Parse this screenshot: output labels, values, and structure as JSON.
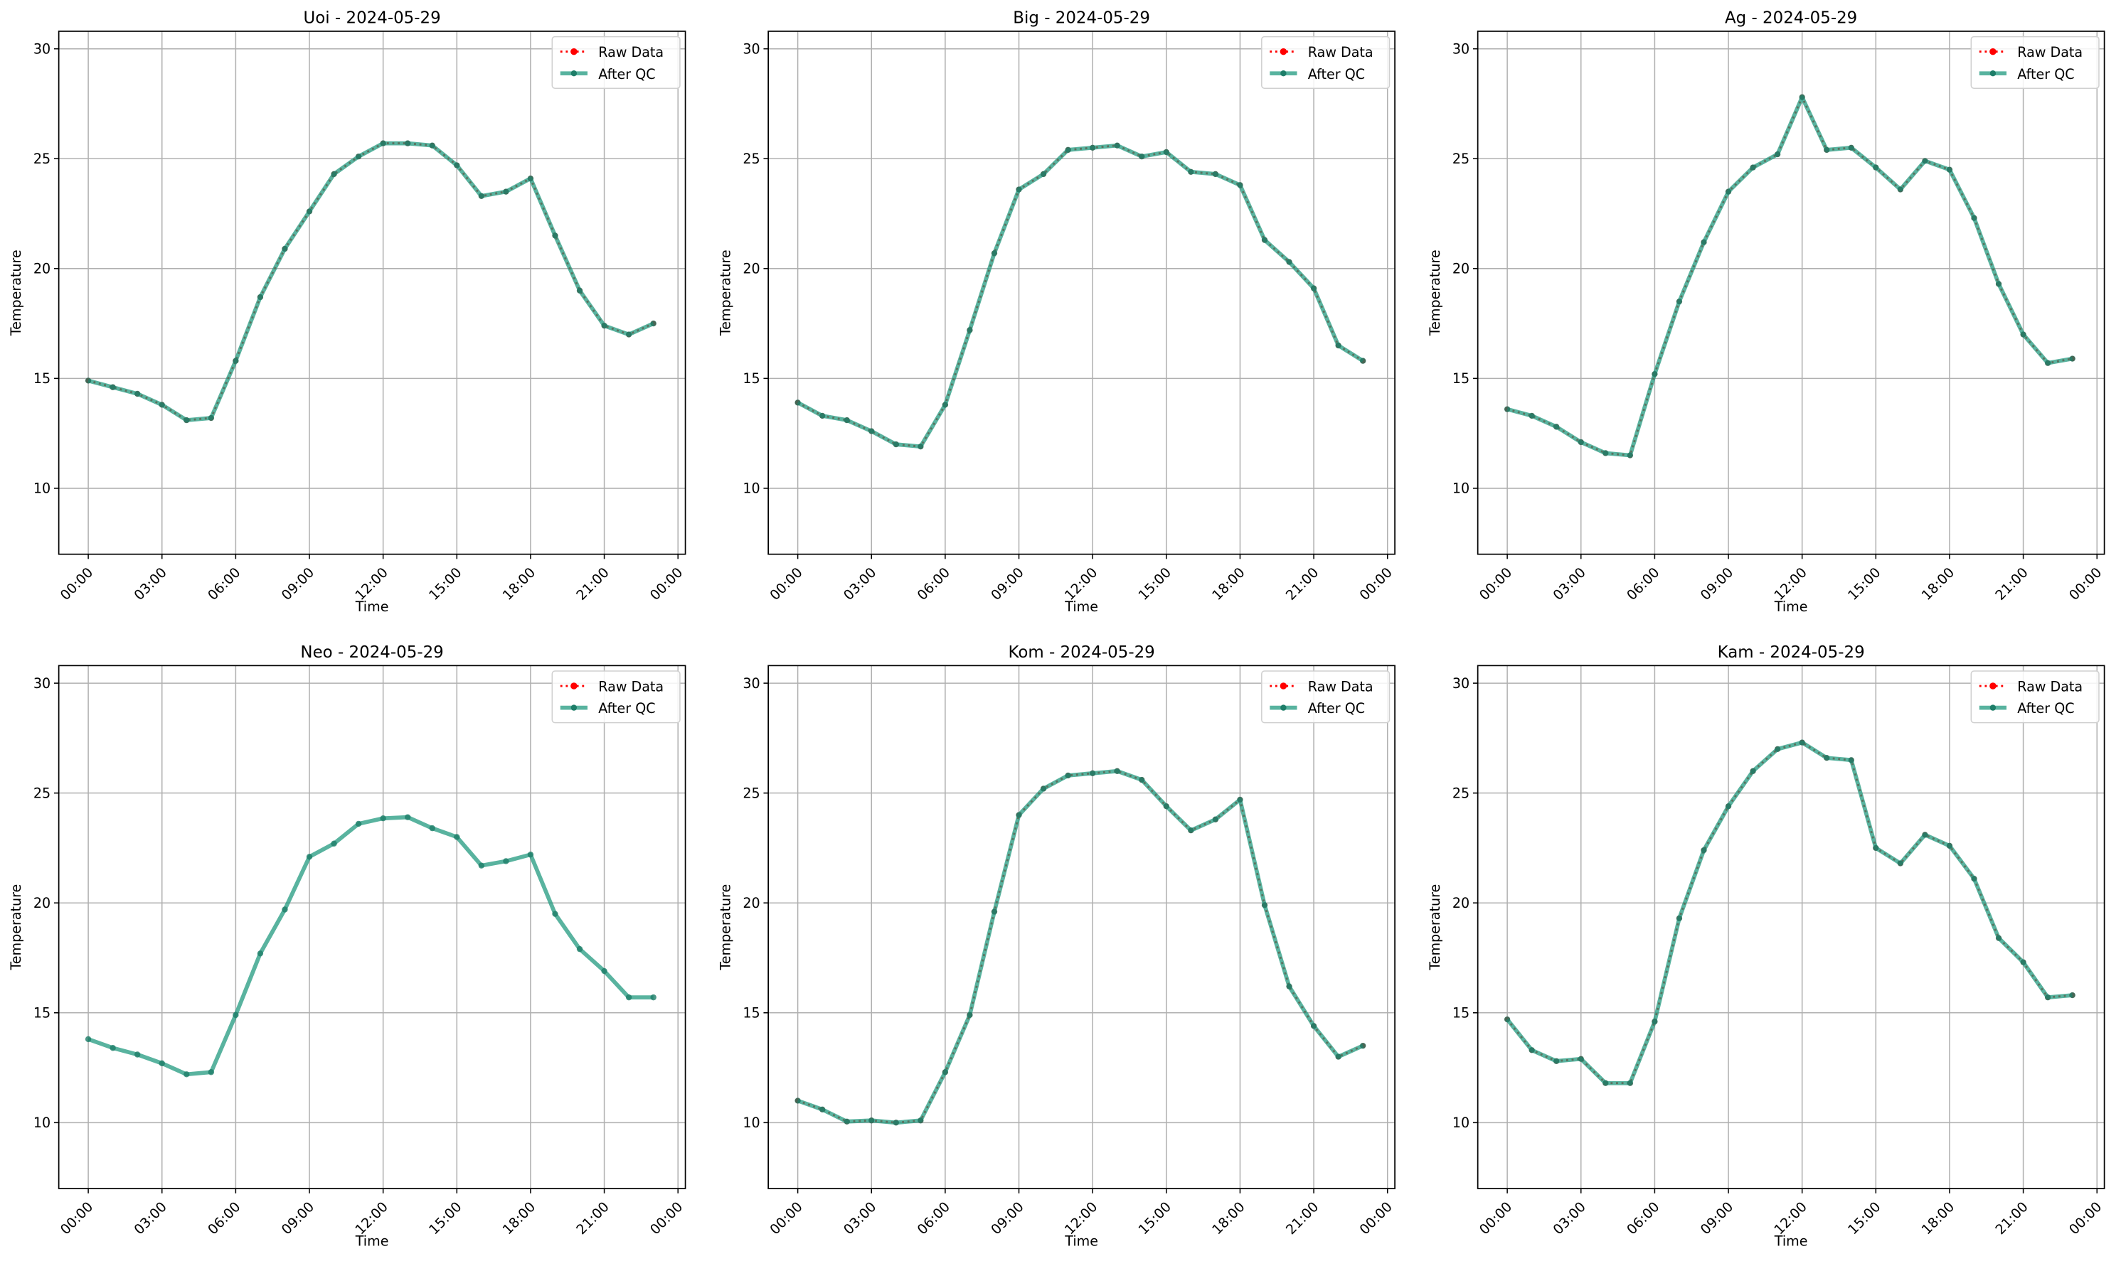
{
  "chart_data": [
    {
      "type": "line",
      "title": "Uoi - 2024-05-29",
      "xlabel": "Time",
      "ylabel": "Temperature",
      "x_hours": [
        0,
        1,
        2,
        3,
        4,
        5,
        6,
        7,
        8,
        9,
        10,
        11,
        12,
        13,
        14,
        15,
        16,
        17,
        18,
        19,
        20,
        21,
        22,
        23
      ],
      "xticks": [
        "00:00",
        "03:00",
        "06:00",
        "09:00",
        "12:00",
        "15:00",
        "18:00",
        "21:00",
        "00:00"
      ],
      "yticks": [
        10,
        15,
        20,
        25,
        30
      ],
      "ylim": [
        7.0,
        30.8
      ],
      "grid": true,
      "legend": "top-right",
      "series": [
        {
          "name": "Raw Data",
          "color": "#ff0000",
          "values": [
            14.9,
            14.6,
            14.3,
            13.8,
            13.1,
            13.2,
            15.8,
            18.7,
            20.9,
            22.6,
            24.3,
            25.1,
            25.7,
            25.7,
            25.6,
            24.7,
            23.3,
            23.5,
            24.1,
            21.5,
            19.0,
            17.4,
            17.0,
            17.5
          ]
        },
        {
          "name": "After QC",
          "color": "#219a7f",
          "values": [
            14.9,
            14.6,
            14.3,
            13.8,
            13.1,
            13.2,
            15.8,
            18.7,
            20.9,
            22.6,
            24.3,
            25.1,
            25.7,
            25.7,
            25.6,
            24.7,
            23.3,
            23.5,
            24.1,
            21.5,
            19.0,
            17.4,
            17.0,
            17.5
          ]
        }
      ]
    },
    {
      "type": "line",
      "title": "Big - 2024-05-29",
      "xlabel": "Time",
      "ylabel": "Temperature",
      "x_hours": [
        0,
        1,
        2,
        3,
        4,
        5,
        6,
        7,
        8,
        9,
        10,
        11,
        12,
        13,
        14,
        15,
        16,
        17,
        18,
        19,
        20,
        21,
        22,
        23
      ],
      "xticks": [
        "00:00",
        "03:00",
        "06:00",
        "09:00",
        "12:00",
        "15:00",
        "18:00",
        "21:00",
        "00:00"
      ],
      "yticks": [
        10,
        15,
        20,
        25,
        30
      ],
      "ylim": [
        7.0,
        30.8
      ],
      "grid": true,
      "legend": "top-right",
      "series": [
        {
          "name": "Raw Data",
          "color": "#ff0000",
          "values": [
            13.9,
            13.3,
            13.1,
            12.6,
            12.0,
            11.9,
            13.8,
            17.2,
            20.7,
            23.6,
            24.3,
            25.4,
            25.5,
            25.6,
            25.1,
            25.3,
            24.4,
            24.3,
            23.8,
            21.3,
            20.3,
            19.1,
            16.5,
            15.8
          ]
        },
        {
          "name": "After QC",
          "color": "#219a7f",
          "values": [
            13.9,
            13.3,
            13.1,
            12.6,
            12.0,
            11.9,
            13.8,
            17.2,
            20.7,
            23.6,
            24.3,
            25.4,
            25.5,
            25.6,
            25.1,
            25.3,
            24.4,
            24.3,
            23.8,
            21.3,
            20.3,
            19.1,
            16.5,
            15.8
          ]
        }
      ]
    },
    {
      "type": "line",
      "title": "Ag - 2024-05-29",
      "xlabel": "Time",
      "ylabel": "Temperature",
      "x_hours": [
        0,
        1,
        2,
        3,
        4,
        5,
        6,
        7,
        8,
        9,
        10,
        11,
        12,
        13,
        14,
        15,
        16,
        17,
        18,
        19,
        20,
        21,
        22,
        23
      ],
      "xticks": [
        "00:00",
        "03:00",
        "06:00",
        "09:00",
        "12:00",
        "15:00",
        "18:00",
        "21:00",
        "00:00"
      ],
      "yticks": [
        10,
        15,
        20,
        25,
        30
      ],
      "ylim": [
        7.0,
        30.8
      ],
      "grid": true,
      "legend": "top-right",
      "series": [
        {
          "name": "Raw Data",
          "color": "#ff0000",
          "values": [
            13.6,
            13.3,
            12.8,
            12.1,
            11.6,
            11.5,
            15.2,
            18.5,
            21.2,
            23.5,
            24.6,
            25.2,
            27.8,
            25.4,
            25.5,
            24.6,
            23.6,
            24.9,
            24.5,
            22.3,
            19.3,
            17.0,
            15.7,
            15.9
          ]
        },
        {
          "name": "After QC",
          "color": "#219a7f",
          "values": [
            13.6,
            13.3,
            12.8,
            12.1,
            11.6,
            11.5,
            15.2,
            18.5,
            21.2,
            23.5,
            24.6,
            25.2,
            27.8,
            25.4,
            25.5,
            24.6,
            23.6,
            24.9,
            24.5,
            22.3,
            19.3,
            17.0,
            15.7,
            15.9
          ]
        }
      ]
    },
    {
      "type": "line",
      "title": "Neo - 2024-05-29",
      "xlabel": "Time",
      "ylabel": "Temperature",
      "x_hours": [
        0,
        1,
        2,
        3,
        4,
        5,
        6,
        7,
        8,
        9,
        10,
        11,
        12,
        13,
        14,
        15,
        16,
        17,
        18,
        19,
        20,
        21,
        22,
        23
      ],
      "xticks": [
        "00:00",
        "03:00",
        "06:00",
        "09:00",
        "12:00",
        "15:00",
        "18:00",
        "21:00",
        "00:00"
      ],
      "yticks": [
        10,
        15,
        20,
        25,
        30
      ],
      "ylim": [
        7.0,
        30.8
      ],
      "grid": true,
      "legend": "top-right",
      "series": [
        {
          "name": "Raw Data",
          "color": "#ff0000",
          "values": []
        },
        {
          "name": "After QC",
          "color": "#219a7f",
          "values": [
            13.8,
            13.4,
            13.1,
            12.7,
            12.2,
            12.3,
            14.9,
            17.7,
            19.7,
            22.1,
            22.7,
            23.6,
            23.85,
            23.9,
            23.4,
            23.0,
            21.7,
            21.9,
            22.2,
            19.5,
            17.9,
            16.9,
            15.7,
            15.7
          ]
        }
      ]
    },
    {
      "type": "line",
      "title": "Kom - 2024-05-29",
      "xlabel": "Time",
      "ylabel": "Temperature",
      "x_hours": [
        0,
        1,
        2,
        3,
        4,
        5,
        6,
        7,
        8,
        9,
        10,
        11,
        12,
        13,
        14,
        15,
        16,
        17,
        18,
        19,
        20,
        21,
        22,
        23
      ],
      "xticks": [
        "00:00",
        "03:00",
        "06:00",
        "09:00",
        "12:00",
        "15:00",
        "18:00",
        "21:00",
        "00:00"
      ],
      "yticks": [
        10,
        15,
        20,
        25,
        30
      ],
      "ylim": [
        7.0,
        30.8
      ],
      "grid": true,
      "legend": "top-right",
      "series": [
        {
          "name": "Raw Data",
          "color": "#ff0000",
          "values": [
            11.0,
            10.6,
            10.05,
            10.1,
            10.0,
            10.1,
            12.3,
            14.9,
            19.6,
            24.0,
            25.2,
            25.8,
            25.9,
            26.0,
            25.6,
            24.4,
            23.3,
            23.8,
            24.7,
            19.9,
            16.2,
            14.4,
            13.0,
            13.5
          ]
        },
        {
          "name": "After QC",
          "color": "#219a7f",
          "values": [
            11.0,
            10.6,
            10.05,
            10.1,
            10.0,
            10.1,
            12.3,
            14.9,
            19.6,
            24.0,
            25.2,
            25.8,
            25.9,
            26.0,
            25.6,
            24.4,
            23.3,
            23.8,
            24.7,
            19.9,
            16.2,
            14.4,
            13.0,
            13.5
          ]
        }
      ]
    },
    {
      "type": "line",
      "title": "Kam - 2024-05-29",
      "xlabel": "Time",
      "ylabel": "Temperature",
      "x_hours": [
        0,
        1,
        2,
        3,
        4,
        5,
        6,
        7,
        8,
        9,
        10,
        11,
        12,
        13,
        14,
        15,
        16,
        17,
        18,
        19,
        20,
        21,
        22,
        23
      ],
      "xticks": [
        "00:00",
        "03:00",
        "06:00",
        "09:00",
        "12:00",
        "15:00",
        "18:00",
        "21:00",
        "00:00"
      ],
      "yticks": [
        10,
        15,
        20,
        25,
        30
      ],
      "ylim": [
        7.0,
        30.8
      ],
      "grid": true,
      "legend": "top-right",
      "series": [
        {
          "name": "Raw Data",
          "color": "#ff0000",
          "values": [
            14.7,
            13.3,
            12.8,
            12.9,
            11.8,
            11.8,
            14.6,
            19.3,
            22.4,
            24.4,
            26.0,
            27.0,
            27.3,
            26.6,
            26.5,
            22.5,
            21.8,
            23.1,
            22.6,
            21.1,
            18.4,
            17.3,
            15.7,
            15.8
          ]
        },
        {
          "name": "After QC",
          "color": "#219a7f",
          "values": [
            14.7,
            13.3,
            12.8,
            12.9,
            11.8,
            11.8,
            14.6,
            19.3,
            22.4,
            24.4,
            26.0,
            27.0,
            27.3,
            26.6,
            26.5,
            22.5,
            21.8,
            23.1,
            22.6,
            21.1,
            18.4,
            17.3,
            15.7,
            15.8
          ]
        }
      ]
    }
  ]
}
